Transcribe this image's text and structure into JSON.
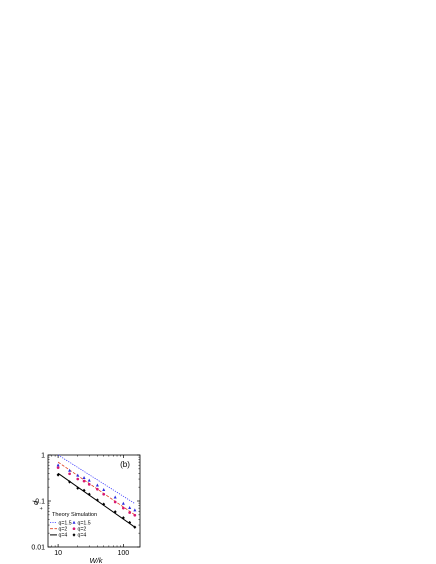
{
  "chart_data": {
    "type": "scatter",
    "panel_label": "(b)",
    "xlabel": "W/k",
    "ylabel": "d",
    "ylabel_sub": "+",
    "xscale": "log",
    "yscale": "log",
    "xlim": [
      7,
      180
    ],
    "ylim": [
      0.01,
      1
    ],
    "xticks": [
      {
        "value": 10,
        "label": "10"
      },
      {
        "value": 100,
        "label": "100"
      }
    ],
    "yticks": [
      {
        "value": 0.01,
        "label": "0.01"
      },
      {
        "value": 0.1,
        "label": "0.1"
      },
      {
        "value": 1,
        "label": "1"
      }
    ],
    "legend_theory_title": "Theory",
    "legend_sim_title": "Simulation",
    "theory": [
      {
        "name": "q=1.5",
        "color": "#3a3aff",
        "dash": "1.2,1.2",
        "x": [
          10,
          150
        ],
        "y": [
          1.0,
          0.088
        ]
      },
      {
        "name": "q=2",
        "color": "#e04020",
        "dash": "3,1.5",
        "x": [
          10,
          150
        ],
        "y": [
          0.7,
          0.05
        ]
      },
      {
        "name": "q=4",
        "color": "#000000",
        "dash": "",
        "x": [
          10,
          150
        ],
        "y": [
          0.4,
          0.027
        ]
      }
    ],
    "simulation": [
      {
        "name": "q=1.5",
        "color": "#2a2ae0",
        "marker": "triangle",
        "x": [
          10,
          15,
          20,
          25,
          30,
          40,
          50,
          75,
          100,
          125,
          150
        ],
        "y": [
          0.6,
          0.46,
          0.36,
          0.32,
          0.28,
          0.22,
          0.175,
          0.12,
          0.088,
          0.071,
          0.063
        ]
      },
      {
        "name": "q=2",
        "color": "#d81870",
        "marker": "circle",
        "x": [
          10,
          15,
          20,
          25,
          30,
          40,
          50,
          75,
          100,
          125,
          150
        ],
        "y": [
          0.53,
          0.39,
          0.3,
          0.27,
          0.23,
          0.18,
          0.14,
          0.095,
          0.07,
          0.056,
          0.049
        ]
      },
      {
        "name": "q=4",
        "color": "#000000",
        "marker": "diamond",
        "x": [
          10,
          15,
          20,
          25,
          30,
          40,
          50,
          75,
          100,
          125,
          150
        ],
        "y": [
          0.37,
          0.26,
          0.19,
          0.17,
          0.14,
          0.105,
          0.085,
          0.058,
          0.043,
          0.034,
          0.027
        ]
      }
    ]
  }
}
